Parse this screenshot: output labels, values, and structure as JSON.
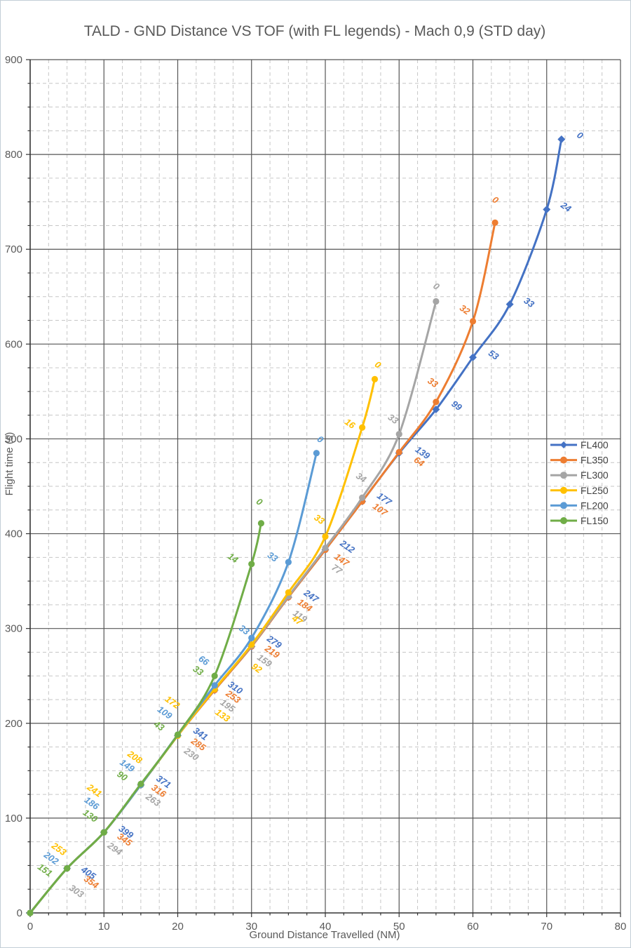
{
  "chart_data": {
    "type": "line",
    "title": "TALD - GND Distance VS TOF (with FL legends) - Mach 0,9 (STD day)",
    "xlabel": "Ground Distance Travelled (NM)",
    "ylabel": "Flight time (s)",
    "xlim": [
      0,
      80
    ],
    "ylim": [
      0,
      900
    ],
    "x_ticks": [
      0,
      10,
      20,
      30,
      40,
      50,
      60,
      70,
      80
    ],
    "y_ticks": [
      0,
      100,
      200,
      300,
      400,
      500,
      600,
      700,
      800,
      900
    ],
    "x_minor_step": 2.5,
    "y_minor_step": 25,
    "grid": {
      "major_on": true,
      "minor_on": true,
      "minor_dashed": true
    },
    "colors": {
      "major_grid": "#555555",
      "minor_grid": "#c6c6c6",
      "axis": "#333333",
      "title": "#595959",
      "tick": "#595959",
      "legend_text": "#404040"
    },
    "legend_position": "right-middle",
    "legend_entries": [
      "FL400",
      "FL350",
      "FL300",
      "FL250",
      "FL200",
      "FL150"
    ],
    "series": [
      {
        "name": "FL400",
        "color": "#4472C4",
        "marker": "diamond",
        "points": [
          [
            0,
            0
          ],
          [
            5,
            47
          ],
          [
            10,
            85
          ],
          [
            15,
            135
          ],
          [
            20,
            187
          ],
          [
            25,
            235
          ],
          [
            30,
            281
          ],
          [
            35,
            333
          ],
          [
            40,
            383
          ],
          [
            45,
            434
          ],
          [
            50,
            485
          ],
          [
            55,
            531
          ],
          [
            60,
            586
          ],
          [
            65,
            642
          ],
          [
            70,
            742
          ],
          [
            72,
            816
          ]
        ],
        "labels": [
          {
            "v": "405",
            "i": 1,
            "dx": 28,
            "dy": 10
          },
          {
            "v": "399",
            "i": 2,
            "dx": 29,
            "dy": 3
          },
          {
            "v": "371",
            "i": 3,
            "dx": 30,
            "dy": -1
          },
          {
            "v": "341",
            "i": 4,
            "dx": 30,
            "dy": 1
          },
          {
            "v": "310",
            "i": 5,
            "dx": 27,
            "dy": 0
          },
          {
            "v": "279",
            "i": 6,
            "dx": 30,
            "dy": -3
          },
          {
            "v": "247",
            "i": 7,
            "dx": 30,
            "dy": 2
          },
          {
            "v": "212",
            "i": 8,
            "dx": 29,
            "dy": -1
          },
          {
            "v": "177",
            "i": 9,
            "dx": 29,
            "dy": 0
          },
          {
            "v": "139",
            "i": 10,
            "dx": 31,
            "dy": 3
          },
          {
            "v": "99",
            "i": 11,
            "dx": 27,
            "dy": -2
          },
          {
            "v": "53",
            "i": 12,
            "dx": 27,
            "dy": 0
          },
          {
            "v": "33",
            "i": 13,
            "dx": 25,
            "dy": 1
          },
          {
            "v": "24",
            "i": 14,
            "dx": 25,
            "dy": 0
          },
          {
            "v": "0",
            "i": 15,
            "dx": 24,
            "dy": -2
          }
        ]
      },
      {
        "name": "FL350",
        "color": "#ED7D31",
        "marker": "circle",
        "points": [
          [
            0,
            0
          ],
          [
            5,
            47
          ],
          [
            10,
            85
          ],
          [
            15,
            135
          ],
          [
            20,
            187
          ],
          [
            25,
            235
          ],
          [
            30,
            281
          ],
          [
            35,
            333
          ],
          [
            40,
            383
          ],
          [
            45,
            434
          ],
          [
            50,
            486
          ],
          [
            55,
            539
          ],
          [
            60,
            624
          ],
          [
            63,
            728
          ]
        ],
        "labels": [
          {
            "v": "354",
            "i": 1,
            "dx": 32,
            "dy": 23
          },
          {
            "v": "345",
            "i": 2,
            "dx": 27,
            "dy": 14
          },
          {
            "v": "316",
            "i": 3,
            "dx": 23,
            "dy": 12
          },
          {
            "v": "285",
            "i": 4,
            "dx": 27,
            "dy": 16
          },
          {
            "v": "253",
            "i": 5,
            "dx": 24,
            "dy": 13
          },
          {
            "v": "219",
            "i": 6,
            "dx": 27,
            "dy": 11
          },
          {
            "v": "184",
            "i": 7,
            "dx": 21,
            "dy": 15
          },
          {
            "v": "147",
            "i": 8,
            "dx": 21,
            "dy": 18
          },
          {
            "v": "107",
            "i": 9,
            "dx": 23,
            "dy": 15
          },
          {
            "v": "64",
            "i": 10,
            "dx": 26,
            "dy": 17
          },
          {
            "v": "33",
            "i": 11,
            "dx": -7,
            "dy": -24
          },
          {
            "v": "32",
            "i": 12,
            "dx": -14,
            "dy": -13
          },
          {
            "v": "0",
            "i": 13,
            "dx": -2,
            "dy": -29
          }
        ]
      },
      {
        "name": "FL300",
        "color": "#A5A5A5",
        "marker": "circle",
        "points": [
          [
            0,
            0
          ],
          [
            5,
            47
          ],
          [
            10,
            85
          ],
          [
            15,
            135
          ],
          [
            20,
            187
          ],
          [
            25,
            236
          ],
          [
            30,
            282
          ],
          [
            35,
            334
          ],
          [
            40,
            385
          ],
          [
            45,
            438
          ],
          [
            50,
            505
          ],
          [
            55,
            645
          ]
        ],
        "labels": [
          {
            "v": "303",
            "i": 1,
            "dx": 11,
            "dy": 36
          },
          {
            "v": "294",
            "i": 2,
            "dx": 13,
            "dy": 27
          },
          {
            "v": "263",
            "i": 3,
            "dx": 15,
            "dy": 25
          },
          {
            "v": "230",
            "i": 4,
            "dx": 17,
            "dy": 30
          },
          {
            "v": "195",
            "i": 5,
            "dx": 16,
            "dy": 27
          },
          {
            "v": "159",
            "i": 6,
            "dx": 16,
            "dy": 25
          },
          {
            "v": "119",
            "i": 7,
            "dx": 14,
            "dy": 32
          },
          {
            "v": "77",
            "i": 8,
            "dx": 14,
            "dy": 34
          },
          {
            "v": "34",
            "i": 9,
            "dx": -4,
            "dy": -25
          },
          {
            "v": "33",
            "i": 10,
            "dx": -11,
            "dy": -18
          },
          {
            "v": "0",
            "i": 11,
            "dx": -2,
            "dy": -18
          }
        ]
      },
      {
        "name": "FL250",
        "color": "#FFC000",
        "marker": "circle",
        "points": [
          [
            0,
            0
          ],
          [
            5,
            47
          ],
          [
            10,
            85
          ],
          [
            15,
            135
          ],
          [
            20,
            187
          ],
          [
            25,
            236
          ],
          [
            30,
            283
          ],
          [
            35,
            338
          ],
          [
            40,
            397
          ],
          [
            45,
            512
          ],
          [
            46.7,
            563
          ]
        ],
        "labels": [
          {
            "v": "253",
            "i": 1,
            "dx": -14,
            "dy": -24
          },
          {
            "v": "241",
            "i": 2,
            "dx": -16,
            "dy": -56
          },
          {
            "v": "208",
            "i": 3,
            "dx": -11,
            "dy": -36
          },
          {
            "v": "172",
            "i": 4,
            "dx": -10,
            "dy": -44
          },
          {
            "v": "133",
            "i": 5,
            "dx": 9,
            "dy": 41
          },
          {
            "v": "92",
            "i": 6,
            "dx": 5,
            "dy": 37
          },
          {
            "v": "47",
            "i": 7,
            "dx": 10,
            "dy": 43
          },
          {
            "v": "33",
            "i": 8,
            "dx": -11,
            "dy": -21
          },
          {
            "v": "16",
            "i": 9,
            "dx": -20,
            "dy": -2
          },
          {
            "v": "0",
            "i": 10,
            "dx": 2,
            "dy": -17
          }
        ]
      },
      {
        "name": "FL200",
        "color": "#5B9BD5",
        "marker": "circle",
        "points": [
          [
            0,
            0
          ],
          [
            5,
            47
          ],
          [
            10,
            85
          ],
          [
            15,
            135
          ],
          [
            20,
            188
          ],
          [
            25,
            240
          ],
          [
            30,
            290
          ],
          [
            35,
            370
          ],
          [
            38.8,
            485
          ]
        ],
        "labels": [
          {
            "v": "202",
            "i": 1,
            "dx": -25,
            "dy": -11
          },
          {
            "v": "186",
            "i": 2,
            "dx": -20,
            "dy": -38
          },
          {
            "v": "149",
            "i": 3,
            "dx": -22,
            "dy": -24
          },
          {
            "v": "109",
            "i": 4,
            "dx": -21,
            "dy": -28
          },
          {
            "v": "66",
            "i": 5,
            "dx": -18,
            "dy": -32
          },
          {
            "v": "33",
            "i": 6,
            "dx": -13,
            "dy": -8
          },
          {
            "v": "33",
            "i": 7,
            "dx": -25,
            "dy": -4
          },
          {
            "v": "0",
            "i": 8,
            "dx": 3,
            "dy": -16
          }
        ]
      },
      {
        "name": "FL150",
        "color": "#70AD47",
        "marker": "circle",
        "points": [
          [
            0,
            0
          ],
          [
            5,
            47
          ],
          [
            10,
            85
          ],
          [
            15,
            136
          ],
          [
            20,
            188
          ],
          [
            25,
            250
          ],
          [
            30,
            368
          ],
          [
            31.3,
            411
          ]
        ],
        "labels": [
          {
            "v": "151",
            "i": 1,
            "dx": -34,
            "dy": 6
          },
          {
            "v": "130",
            "i": 2,
            "dx": -22,
            "dy": -20
          },
          {
            "v": "90",
            "i": 3,
            "dx": -29,
            "dy": -8
          },
          {
            "v": "43",
            "i": 4,
            "dx": -29,
            "dy": -9
          },
          {
            "v": "33",
            "i": 5,
            "dx": -26,
            "dy": -4
          },
          {
            "v": "14",
            "i": 6,
            "dx": -29,
            "dy": -5
          },
          {
            "v": "0",
            "i": 7,
            "dx": -5,
            "dy": -27
          }
        ]
      }
    ]
  }
}
